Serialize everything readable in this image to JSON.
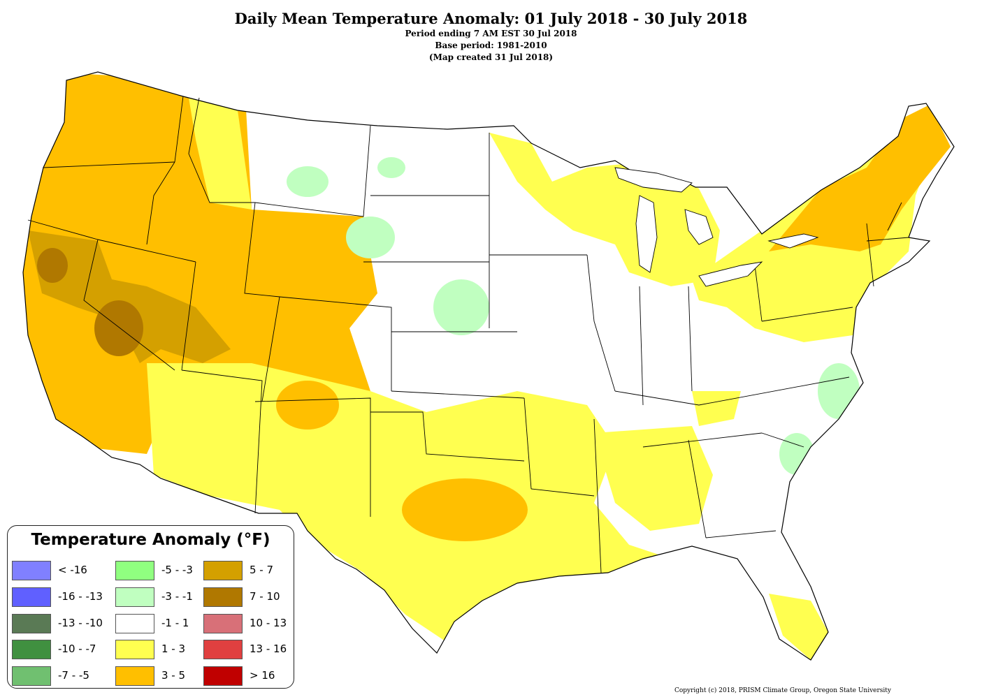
{
  "header": {
    "title": "Daily Mean Temperature Anomaly: 01 July 2018 - 30 July 2018",
    "line1": "Period ending 7 AM EST 30 Jul 2018",
    "line2": "Base period: 1981-2010",
    "line3": "(Map created 31 Jul 2018)"
  },
  "legend": {
    "title": "Temperature Anomaly (°F)",
    "items": [
      {
        "label": "< -16",
        "color": "#8080ff"
      },
      {
        "label": "-16 - -13",
        "color": "#6060ff"
      },
      {
        "label": "-13 - -10",
        "color": "#5a7a55"
      },
      {
        "label": "-10 - -7",
        "color": "#409040"
      },
      {
        "label": "-7 - -5",
        "color": "#70c070"
      },
      {
        "label": "-5 - -3",
        "color": "#90ff80"
      },
      {
        "label": "-3 - -1",
        "color": "#c0ffc0"
      },
      {
        "label": "-1 - 1",
        "color": "#ffffff"
      },
      {
        "label": "1 - 3",
        "color": "#ffff50"
      },
      {
        "label": "3 - 5",
        "color": "#ffbf00"
      },
      {
        "label": "5 - 7",
        "color": "#d4a000"
      },
      {
        "label": "7 - 10",
        "color": "#b07800"
      },
      {
        "label": "10 - 13",
        "color": "#d87078"
      },
      {
        "label": "13 - 16",
        "color": "#e04040"
      },
      {
        "label": "> 16",
        "color": "#c00000"
      }
    ]
  },
  "copyright": "Copyright (c) 2018, PRISM Climate Group, Oregon State University"
}
